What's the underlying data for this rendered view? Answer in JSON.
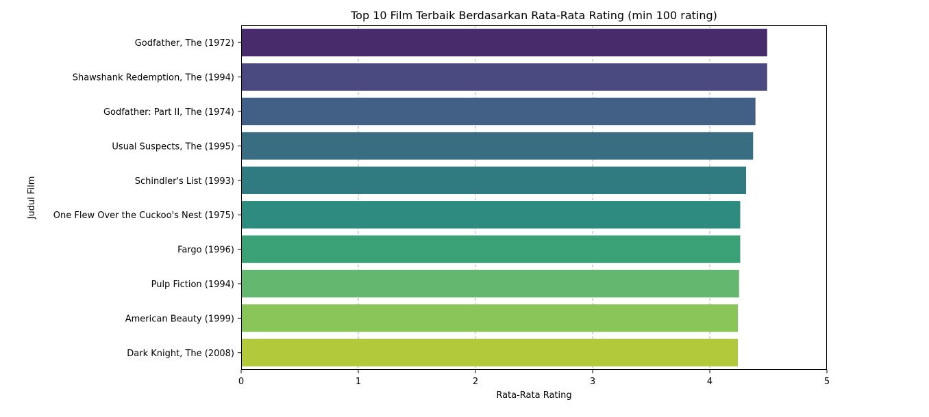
{
  "chart_data": {
    "type": "bar",
    "orientation": "horizontal",
    "title": "Top 10 Film Terbaik Berdasarkan Rata-Rata Rating (min 100 rating)",
    "xlabel": "Rata-Rata Rating",
    "ylabel": "Judul Film",
    "xlim": [
      0,
      5
    ],
    "xticks": [
      "0",
      "1",
      "2",
      "3",
      "4",
      "5"
    ],
    "grid": "x-dashed",
    "categories": [
      "Godfather, The (1972)",
      "Shawshank Redemption, The (1994)",
      "Godfather: Part II, The (1974)",
      "Usual Suspects, The (1995)",
      "Schindler's List (1993)",
      "One Flew Over the Cuckoo's Nest (1975)",
      "Fargo (1996)",
      "Pulp Fiction (1994)",
      "American Beauty (1999)",
      "Dark Knight, The (2008)"
    ],
    "values": [
      4.49,
      4.49,
      4.39,
      4.37,
      4.31,
      4.26,
      4.26,
      4.25,
      4.24,
      4.24
    ],
    "colors": [
      "#482b6a",
      "#4a4a80",
      "#426085",
      "#386d82",
      "#2f7b7f",
      "#2e8b7f",
      "#3ba177",
      "#63b76e",
      "#8ac55a",
      "#b1c93a"
    ]
  }
}
